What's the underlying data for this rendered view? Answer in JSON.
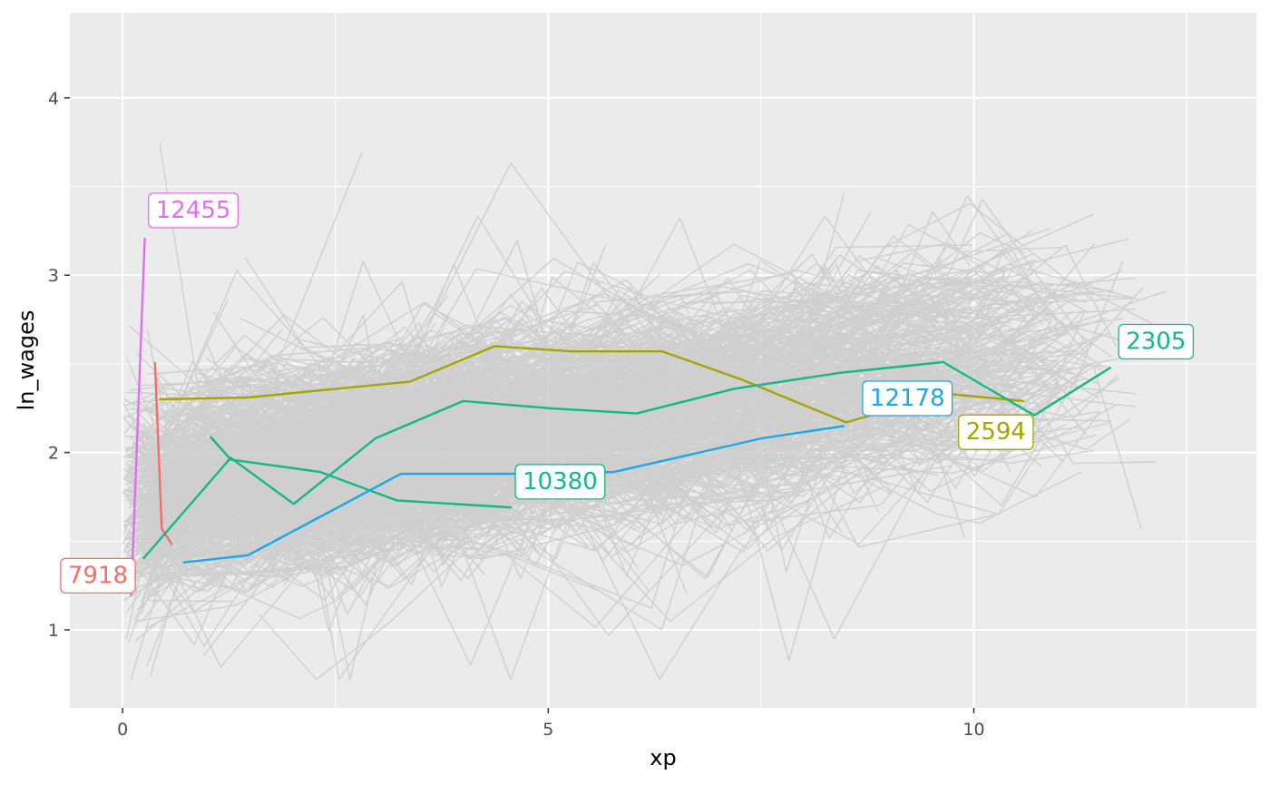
{
  "chart_data": {
    "type": "line",
    "title": "",
    "xlabel": "xp",
    "ylabel": "ln_wages",
    "xlim": [
      -0.62,
      13.32
    ],
    "ylim": [
      0.56,
      4.48
    ],
    "x_ticks": [
      0,
      5,
      10
    ],
    "x_tick_labels": [
      "0",
      "5",
      "10"
    ],
    "y_ticks": [
      1,
      2,
      3,
      4
    ],
    "y_tick_labels": [
      "1",
      "2",
      "3",
      "4"
    ],
    "grid": true,
    "legend": "none",
    "background_series_color": "#c8c8c8",
    "background_series_count": 888,
    "highlighted_series": [
      {
        "name": "12455",
        "color": "#e36cf0",
        "label": "12455",
        "x": [
          0.1,
          0.26
        ],
        "y": [
          1.19,
          3.21
        ]
      },
      {
        "name": "7918",
        "color": "#f26e6a",
        "label": "7918",
        "x": [
          0.38,
          0.46,
          0.58
        ],
        "y": [
          2.51,
          1.57,
          1.48
        ]
      },
      {
        "name": "2594",
        "color": "#a4a500",
        "label": "2594",
        "x": [
          0.43,
          1.47,
          3.38,
          4.37,
          5.27,
          6.34,
          7.28,
          8.5,
          9.7,
          10.59
        ],
        "y": [
          2.3,
          2.31,
          2.4,
          2.6,
          2.57,
          2.57,
          2.41,
          2.17,
          2.33,
          2.29
        ]
      },
      {
        "name": "2305",
        "color": "#12b886",
        "label": "2305",
        "x": [
          0.24,
          1.27,
          2.01,
          2.97,
          4.0,
          5.01,
          6.04,
          7.19,
          8.44,
          9.64,
          10.71,
          11.61
        ],
        "y": [
          1.4,
          1.97,
          1.71,
          2.08,
          2.29,
          2.25,
          2.22,
          2.36,
          2.45,
          2.51,
          2.21,
          2.48
        ]
      },
      {
        "name": "10380",
        "color": "#12b886",
        "label": "10380",
        "x": [
          1.03,
          1.27,
          2.32,
          3.22,
          4.57
        ],
        "y": [
          2.09,
          1.96,
          1.89,
          1.73,
          1.69
        ]
      },
      {
        "name": "12178",
        "color": "#1aa8e6",
        "label": "12178",
        "x": [
          0.71,
          1.47,
          3.27,
          4.68,
          5.77,
          7.51,
          8.48
        ],
        "y": [
          1.38,
          1.42,
          1.88,
          1.88,
          1.89,
          2.08,
          2.15
        ]
      }
    ],
    "labels": [
      {
        "text": "12455",
        "x": 0.83,
        "y": 3.37,
        "color": "#e36cf0"
      },
      {
        "text": "7918",
        "x": -0.29,
        "y": 1.31,
        "color": "#f26e6a"
      },
      {
        "text": "2594",
        "x": 10.26,
        "y": 2.12,
        "color": "#a4a500"
      },
      {
        "text": "2305",
        "x": 12.14,
        "y": 2.63,
        "color": "#12b886"
      },
      {
        "text": "10380",
        "x": 5.14,
        "y": 1.84,
        "color": "#12b886"
      },
      {
        "text": "12178",
        "x": 9.22,
        "y": 2.31,
        "color": "#1aa8e6"
      }
    ]
  }
}
